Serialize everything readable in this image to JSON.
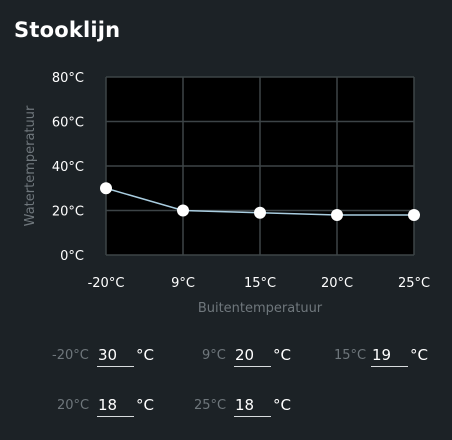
{
  "title": "Stooklijn",
  "chart_data": {
    "type": "line",
    "x": [
      "-20°C",
      "9°C",
      "15°C",
      "20°C",
      "25°C"
    ],
    "values": [
      30,
      20,
      19,
      18,
      18
    ],
    "y_ticks": [
      "0°C",
      "20°C",
      "40°C",
      "60°C",
      "80°C"
    ],
    "ylim": [
      0,
      80
    ],
    "xlabel": "Buitentemperatuur",
    "ylabel": "Watertemperatuur",
    "grid": true,
    "line_color": "#a9cde0",
    "point_color": "#ffffff"
  },
  "fields": [
    {
      "label": "-20°C",
      "value": "30",
      "unit": "°C"
    },
    {
      "label": "9°C",
      "value": "20",
      "unit": "°C"
    },
    {
      "label": "15°C",
      "value": "19",
      "unit": "°C"
    },
    {
      "label": "20°C",
      "value": "18",
      "unit": "°C"
    },
    {
      "label": "25°C",
      "value": "18",
      "unit": "°C"
    }
  ]
}
